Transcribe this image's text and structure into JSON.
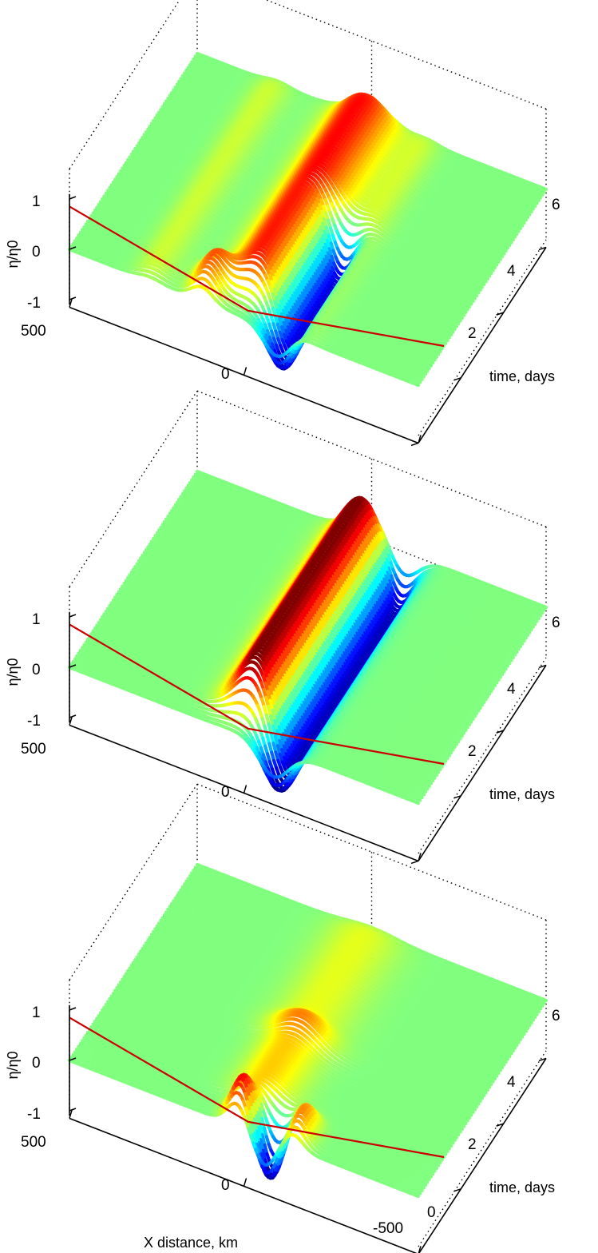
{
  "figure": {
    "background": "#ffffff",
    "colormap": "jet"
  },
  "chart_data": [
    {
      "type": "surface",
      "xlabel": "",
      "ylabel": "time, days",
      "zlabel": "η/η0",
      "xlim": [
        -500,
        500
      ],
      "ylim": [
        0,
        6
      ],
      "zlim": [
        -1,
        1
      ],
      "x_ticks": [
        "500",
        "0",
        ""
      ],
      "y_ticks": [
        "",
        "2",
        "4",
        "6"
      ],
      "z_ticks": [
        "1",
        "0",
        "-1"
      ],
      "grid": true,
      "ridges": [
        {
          "x_center": 0,
          "amplitude": 0.75,
          "width": 85,
          "t_start": 0.5,
          "t_end": 6
        },
        {
          "x_center": -95,
          "amplitude": -1.05,
          "width": 55,
          "t_start": 0,
          "t_end": 3.2
        },
        {
          "x_center": 120,
          "amplitude": 0.55,
          "width": 45,
          "t_start": 0,
          "t_end": 0.9
        },
        {
          "x_center": -160,
          "amplitude": 0.14,
          "width": 45,
          "t_start": 0,
          "t_end": 6
        },
        {
          "x_center": 270,
          "amplitude": 0.15,
          "width": 50,
          "t_start": 0,
          "t_end": 6
        }
      ],
      "line": {
        "color": "#cc0000",
        "points": [
          [
            500,
            0,
            0.85
          ],
          [
            0,
            0.2,
            0
          ],
          [
            -500,
            1.2,
            0
          ]
        ]
      }
    },
    {
      "type": "surface",
      "xlabel": "",
      "ylabel": "time, days",
      "zlabel": "η/η0",
      "xlim": [
        -500,
        500
      ],
      "ylim": [
        0,
        6
      ],
      "zlim": [
        -1,
        1
      ],
      "x_ticks": [
        "500",
        "0",
        ""
      ],
      "y_ticks": [
        "",
        "2",
        "4",
        "6"
      ],
      "z_ticks": [
        "1",
        "0",
        "-1"
      ],
      "grid": true,
      "ridges": [
        {
          "x_center": 0,
          "amplitude": 1.15,
          "width": 80,
          "t_start": 0.4,
          "t_end": 6
        },
        {
          "x_center": -85,
          "amplitude": -1.2,
          "width": 60,
          "t_start": 0,
          "t_end": 6
        }
      ],
      "line": {
        "color": "#cc0000",
        "points": [
          [
            500,
            0,
            0.85
          ],
          [
            0,
            0.2,
            0
          ],
          [
            -500,
            1.2,
            0
          ]
        ]
      }
    },
    {
      "type": "surface",
      "xlabel": "X distance, km",
      "ylabel": "time, days",
      "zlabel": "η/η0",
      "xlim": [
        -500,
        500
      ],
      "ylim": [
        0,
        6
      ],
      "zlim": [
        -1,
        1
      ],
      "x_ticks": [
        "500",
        "0",
        "-500"
      ],
      "y_ticks": [
        "0",
        "2",
        "4",
        "6"
      ],
      "z_ticks": [
        "1",
        "0",
        "-1"
      ],
      "grid": true,
      "ridges": [
        {
          "x_center": 20,
          "amplitude": 0.9,
          "width": 40,
          "t_start": 0,
          "t_end": 0.6
        },
        {
          "x_center": -60,
          "amplitude": -1.15,
          "width": 45,
          "t_start": 0,
          "t_end": 0.6
        },
        {
          "x_center": -140,
          "amplitude": 0.55,
          "width": 40,
          "t_start": 0,
          "t_end": 0.8
        },
        {
          "x_center": 0,
          "amplitude": 0.35,
          "width": 80,
          "t_start": 0.7,
          "t_end": 3
        },
        {
          "x_center": 0,
          "amplitude": 0.2,
          "width": 100,
          "t_start": 2.5,
          "t_end": 6
        }
      ],
      "line": {
        "color": "#cc0000",
        "points": [
          [
            500,
            0,
            0.85
          ],
          [
            0,
            0.2,
            0
          ],
          [
            -500,
            1.2,
            0
          ]
        ]
      }
    }
  ]
}
